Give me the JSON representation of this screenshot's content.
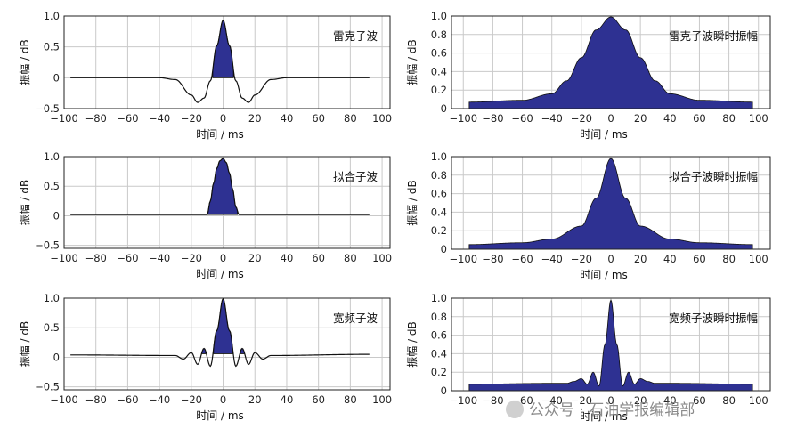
{
  "chart_data": [
    {
      "type": "line",
      "title": "雷克子波",
      "xlabel": "时间 / ms",
      "ylabel": "振幅 / dB",
      "xlim": [
        -100,
        105
      ],
      "ylim": [
        -0.5,
        1.0
      ],
      "xticks": [
        -100,
        -80,
        -60,
        -40,
        -20,
        0,
        20,
        40,
        60,
        80,
        100
      ],
      "yticks": [
        1.0,
        0.5,
        0,
        -0.5
      ],
      "series": [
        {
          "x": [
            -96,
            -40,
            -30,
            -20,
            -16,
            -12,
            -8,
            -4,
            0,
            4,
            8,
            12,
            16,
            20,
            30,
            40,
            92
          ],
          "y": [
            0,
            0,
            -0.03,
            -0.28,
            -0.4,
            -0.33,
            -0.05,
            0.52,
            0.93,
            0.52,
            -0.05,
            -0.33,
            -0.4,
            -0.28,
            -0.03,
            0,
            0
          ]
        }
      ],
      "filled_region": "positive lobe"
    },
    {
      "type": "area",
      "title": "雷克子波瞬时振幅",
      "xlabel": "时间 / ms",
      "ylabel": "振幅 / dB",
      "xlim": [
        -108,
        108
      ],
      "ylim": [
        0,
        1.0
      ],
      "xticks": [
        -100,
        -80,
        -60,
        -40,
        -20,
        0,
        20,
        40,
        60,
        80,
        100
      ],
      "yticks": [
        1.0,
        0.8,
        0.6,
        0.4,
        0.2,
        0
      ],
      "series": [
        {
          "x": [
            -96,
            -60,
            -40,
            -30,
            -20,
            -10,
            0,
            10,
            20,
            30,
            40,
            60,
            96
          ],
          "y": [
            0.07,
            0.09,
            0.16,
            0.3,
            0.55,
            0.85,
            0.99,
            0.85,
            0.55,
            0.3,
            0.16,
            0.09,
            0.07
          ]
        }
      ]
    },
    {
      "type": "line",
      "title": "拟合子波",
      "xlabel": "时间 / ms",
      "ylabel": "振幅 / dB",
      "xlim": [
        -100,
        105
      ],
      "ylim": [
        -0.55,
        1.0
      ],
      "xticks": [
        -100,
        -80,
        -60,
        -40,
        -20,
        0,
        20,
        40,
        60,
        80,
        100
      ],
      "yticks": [
        1.0,
        0.5,
        0,
        -0.5
      ],
      "series": [
        {
          "x": [
            -96,
            -10,
            -8,
            -6,
            -4,
            -2,
            0,
            2,
            4,
            6,
            8,
            10,
            92
          ],
          "y": [
            0.02,
            0.02,
            0.25,
            0.55,
            0.8,
            0.93,
            0.97,
            0.9,
            0.72,
            0.45,
            0.15,
            0.02,
            0.02
          ]
        }
      ],
      "filled_region": "positive lobe"
    },
    {
      "type": "area",
      "title": "拟合子波瞬时振幅",
      "xlabel": "时间 / ms",
      "ylabel": "振幅 / dB",
      "xlim": [
        -108,
        108
      ],
      "ylim": [
        0,
        1.0
      ],
      "xticks": [
        -100,
        -80,
        -60,
        -40,
        -20,
        0,
        20,
        40,
        60,
        80,
        100
      ],
      "yticks": [
        1.0,
        0.8,
        0.6,
        0.4,
        0.2,
        0
      ],
      "series": [
        {
          "x": [
            -96,
            -60,
            -40,
            -20,
            -10,
            0,
            10,
            20,
            40,
            60,
            96
          ],
          "y": [
            0.05,
            0.07,
            0.11,
            0.25,
            0.55,
            0.98,
            0.55,
            0.25,
            0.11,
            0.07,
            0.05
          ]
        }
      ]
    },
    {
      "type": "line",
      "title": "宽频子波",
      "xlabel": "时间 / ms",
      "ylabel": "振幅 / dB",
      "xlim": [
        -100,
        105
      ],
      "ylim": [
        -0.55,
        1.0
      ],
      "xticks": [
        -100,
        -80,
        -60,
        -40,
        -20,
        0,
        20,
        40,
        60,
        80,
        100
      ],
      "yticks": [
        1.0,
        0.5,
        0,
        -0.5
      ],
      "series": [
        {
          "x": [
            -96,
            -30,
            -25,
            -20,
            -16,
            -12,
            -8,
            -4,
            0,
            4,
            8,
            12,
            16,
            20,
            25,
            30,
            92
          ],
          "y": [
            0.04,
            0.03,
            -0.03,
            0.08,
            -0.12,
            0.15,
            -0.15,
            0.45,
            0.99,
            0.45,
            -0.15,
            0.15,
            -0.12,
            0.08,
            -0.03,
            0.03,
            0.05
          ]
        }
      ],
      "filled_region": "central positive lobe"
    },
    {
      "type": "area",
      "title": "宽频子波瞬时振幅",
      "xlabel": "时间 / ms",
      "ylabel": "振幅 / dB",
      "xlim": [
        -108,
        108
      ],
      "ylim": [
        0,
        1.0
      ],
      "xticks": [
        -100,
        -80,
        -60,
        -40,
        -20,
        0,
        20,
        40,
        60,
        80,
        100
      ],
      "yticks": [
        1.0,
        0.8,
        0.6,
        0.4,
        0.2,
        0
      ],
      "series": [
        {
          "x": [
            -96,
            -40,
            -30,
            -25,
            -20,
            -16,
            -12,
            -8,
            -4,
            0,
            4,
            8,
            12,
            16,
            20,
            25,
            30,
            40,
            96
          ],
          "y": [
            0.07,
            0.08,
            0.08,
            0.1,
            0.13,
            0.07,
            0.2,
            0.05,
            0.5,
            0.98,
            0.5,
            0.05,
            0.2,
            0.07,
            0.13,
            0.1,
            0.08,
            0.08,
            0.07
          ]
        }
      ]
    }
  ],
  "watermark": "公众号 · 石油学报编辑部"
}
